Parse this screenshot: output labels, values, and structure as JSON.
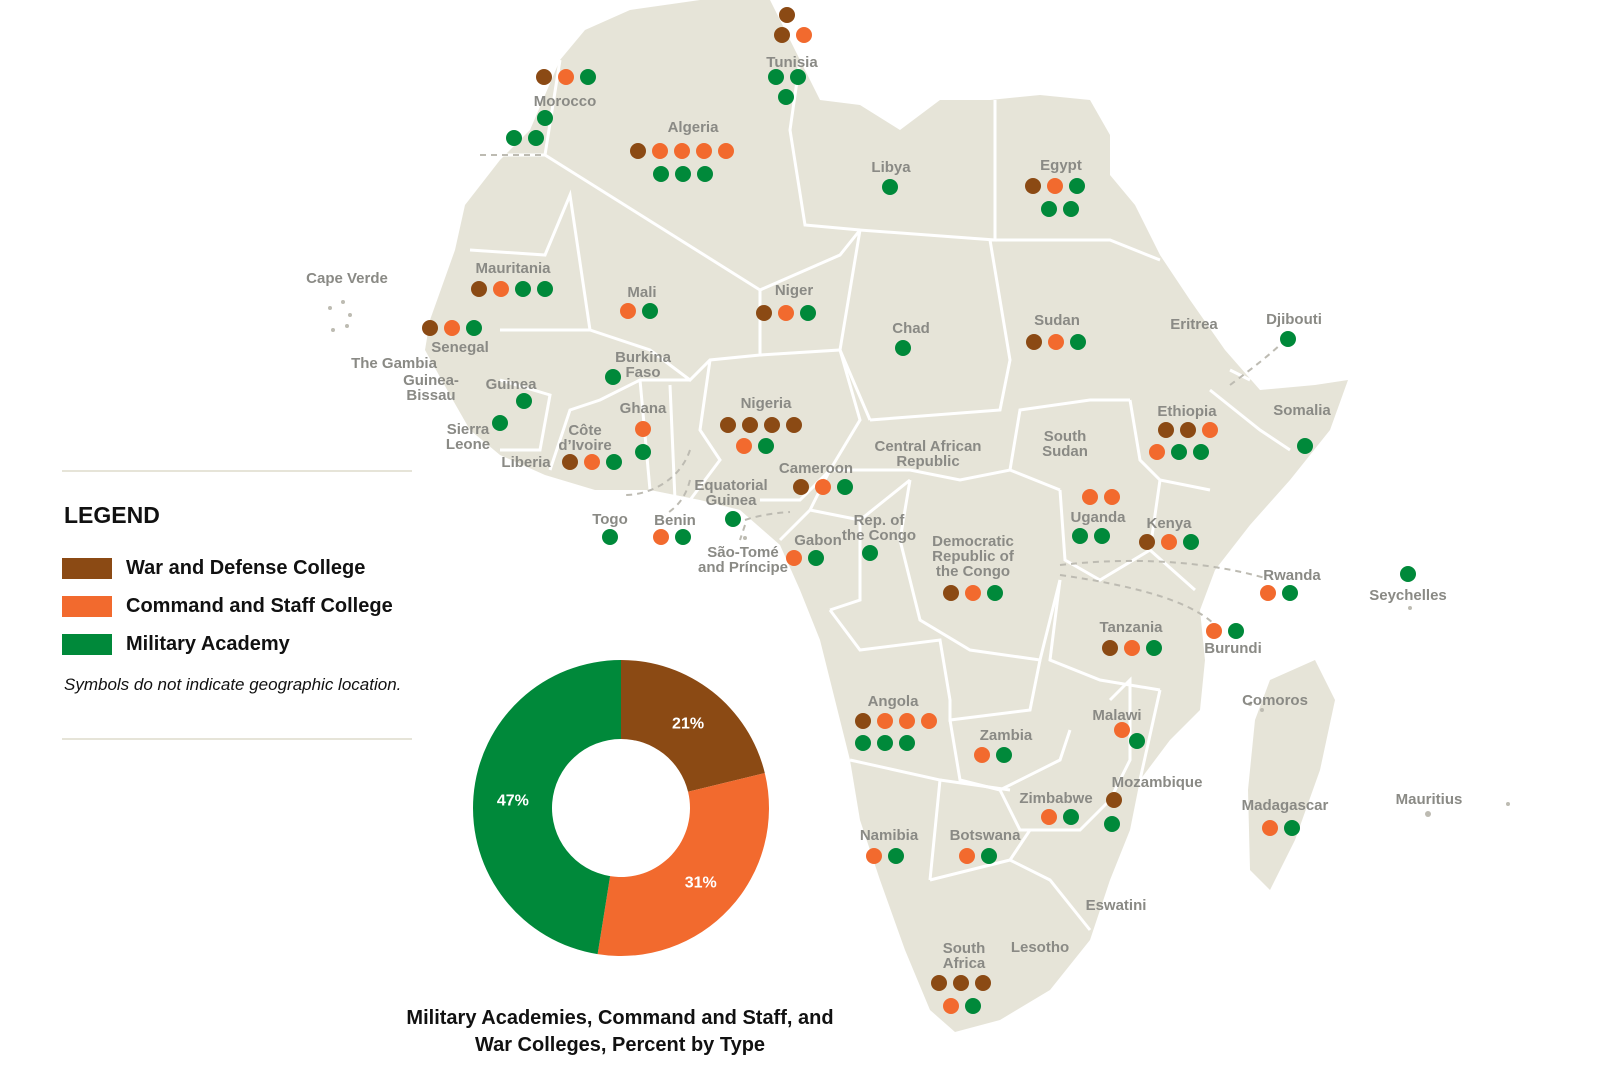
{
  "legend": {
    "title": "LEGEND",
    "items": [
      {
        "label": "War and Defense College",
        "color": "#8b4a14"
      },
      {
        "label": "Command and Staff College",
        "color": "#f26a2e"
      },
      {
        "label": "Military Academy",
        "color": "#00893a"
      }
    ],
    "note": "Symbols do not indicate geographic location."
  },
  "colors": {
    "land": "#e6e4d8",
    "border": "#ffffff",
    "label": "#8a8a85",
    "war": "#8b4a14",
    "command": "#f26a2e",
    "academy": "#00893a"
  },
  "countries": [
    {
      "name": "Morocco"
    },
    {
      "name": "Algeria"
    },
    {
      "name": "Tunisia"
    },
    {
      "name": "Libya"
    },
    {
      "name": "Egypt"
    },
    {
      "name": "Mauritania"
    },
    {
      "name": "Cape Verde"
    },
    {
      "name": "Senegal"
    },
    {
      "name": "The Gambia"
    },
    {
      "name": "Guinea-Bissau"
    },
    {
      "name": "Guinea"
    },
    {
      "name": "Sierra Leone"
    },
    {
      "name": "Liberia"
    },
    {
      "name": "Côte d'Ivoire"
    },
    {
      "name": "Mali"
    },
    {
      "name": "Burkina Faso"
    },
    {
      "name": "Ghana"
    },
    {
      "name": "Togo"
    },
    {
      "name": "Benin"
    },
    {
      "name": "Niger"
    },
    {
      "name": "Nigeria"
    },
    {
      "name": "Chad"
    },
    {
      "name": "Sudan"
    },
    {
      "name": "Eritrea"
    },
    {
      "name": "Djibouti"
    },
    {
      "name": "Somalia"
    },
    {
      "name": "Ethiopia"
    },
    {
      "name": "South Sudan"
    },
    {
      "name": "Central African Republic"
    },
    {
      "name": "Cameroon"
    },
    {
      "name": "Equatorial Guinea"
    },
    {
      "name": "São-Tomé and Príncipe"
    },
    {
      "name": "Gabon"
    },
    {
      "name": "Rep. of the Congo"
    },
    {
      "name": "Democratic Republic of the Congo"
    },
    {
      "name": "Uganda"
    },
    {
      "name": "Kenya"
    },
    {
      "name": "Rwanda"
    },
    {
      "name": "Burundi"
    },
    {
      "name": "Seychelles"
    },
    {
      "name": "Tanzania"
    },
    {
      "name": "Angola"
    },
    {
      "name": "Zambia"
    },
    {
      "name": "Malawi"
    },
    {
      "name": "Comoros"
    },
    {
      "name": "Mozambique"
    },
    {
      "name": "Madagascar"
    },
    {
      "name": "Mauritius"
    },
    {
      "name": "Zimbabwe"
    },
    {
      "name": "Namibia"
    },
    {
      "name": "Botswana"
    },
    {
      "name": "Eswatini"
    },
    {
      "name": "Lesotho"
    },
    {
      "name": "South Africa"
    }
  ],
  "chart_data": {
    "type": "pie",
    "title": "Military Academies, Command and Staff, and War Colleges, Percent by Type",
    "slices": [
      {
        "label": "War and Defense College",
        "value": 21,
        "display": "21%"
      },
      {
        "label": "Command and Staff College",
        "value": 31,
        "display": "31%"
      },
      {
        "label": "Military Academy",
        "value": 47,
        "display": "47%"
      }
    ]
  }
}
